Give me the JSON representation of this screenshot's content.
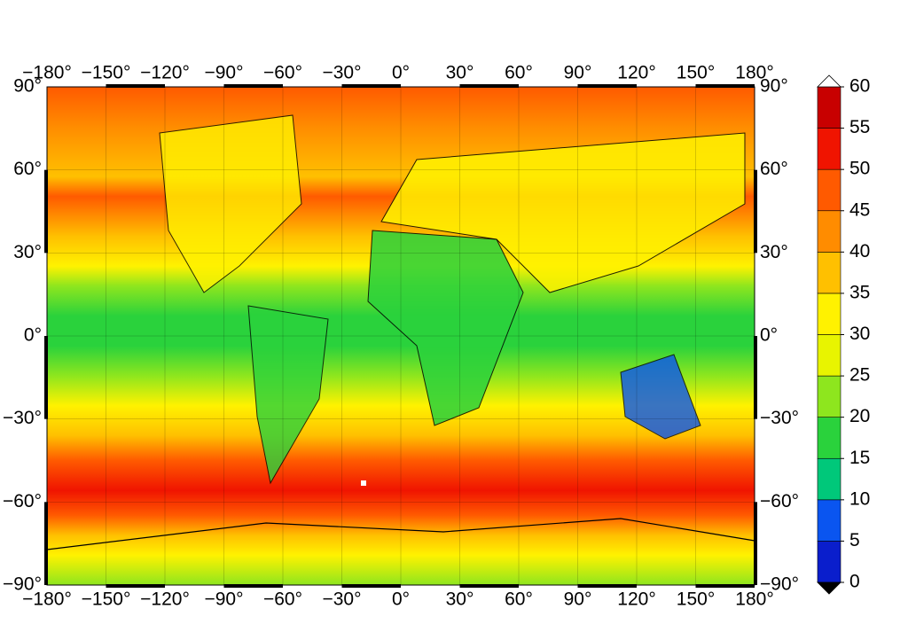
{
  "map": {
    "lon_ticks": [
      {
        "value": -180,
        "label": "−180°"
      },
      {
        "value": -150,
        "label": "−150°"
      },
      {
        "value": -120,
        "label": "−120°"
      },
      {
        "value": -90,
        "label": "−90°"
      },
      {
        "value": -60,
        "label": "−60°"
      },
      {
        "value": -30,
        "label": "−30°"
      },
      {
        "value": 0,
        "label": "0°"
      },
      {
        "value": 30,
        "label": "30°"
      },
      {
        "value": 60,
        "label": "60°"
      },
      {
        "value": 90,
        "label": "90°"
      },
      {
        "value": 120,
        "label": "120°"
      },
      {
        "value": 150,
        "label": "150°"
      },
      {
        "value": 180,
        "label": "180°"
      }
    ],
    "lat_ticks": [
      {
        "value": 90,
        "label": "90°"
      },
      {
        "value": 60,
        "label": "60°"
      },
      {
        "value": 30,
        "label": "30°"
      },
      {
        "value": 0,
        "label": "0°"
      },
      {
        "value": -30,
        "label": "−30°"
      },
      {
        "value": -60,
        "label": "−60°"
      },
      {
        "value": -90,
        "label": "−90°"
      }
    ],
    "colorbar": {
      "ticks": [
        0,
        5,
        10,
        15,
        20,
        25,
        30,
        35,
        40,
        45,
        50,
        55,
        60
      ],
      "colors": [
        "#0a1ecc",
        "#0a55f0",
        "#00c87a",
        "#2ad23c",
        "#8ee61e",
        "#e8f400",
        "#fff200",
        "#ffc000",
        "#ff8c00",
        "#ff5a00",
        "#f01400",
        "#c80000"
      ],
      "over_color": "#ffffff",
      "under_color": "#000000"
    }
  }
}
